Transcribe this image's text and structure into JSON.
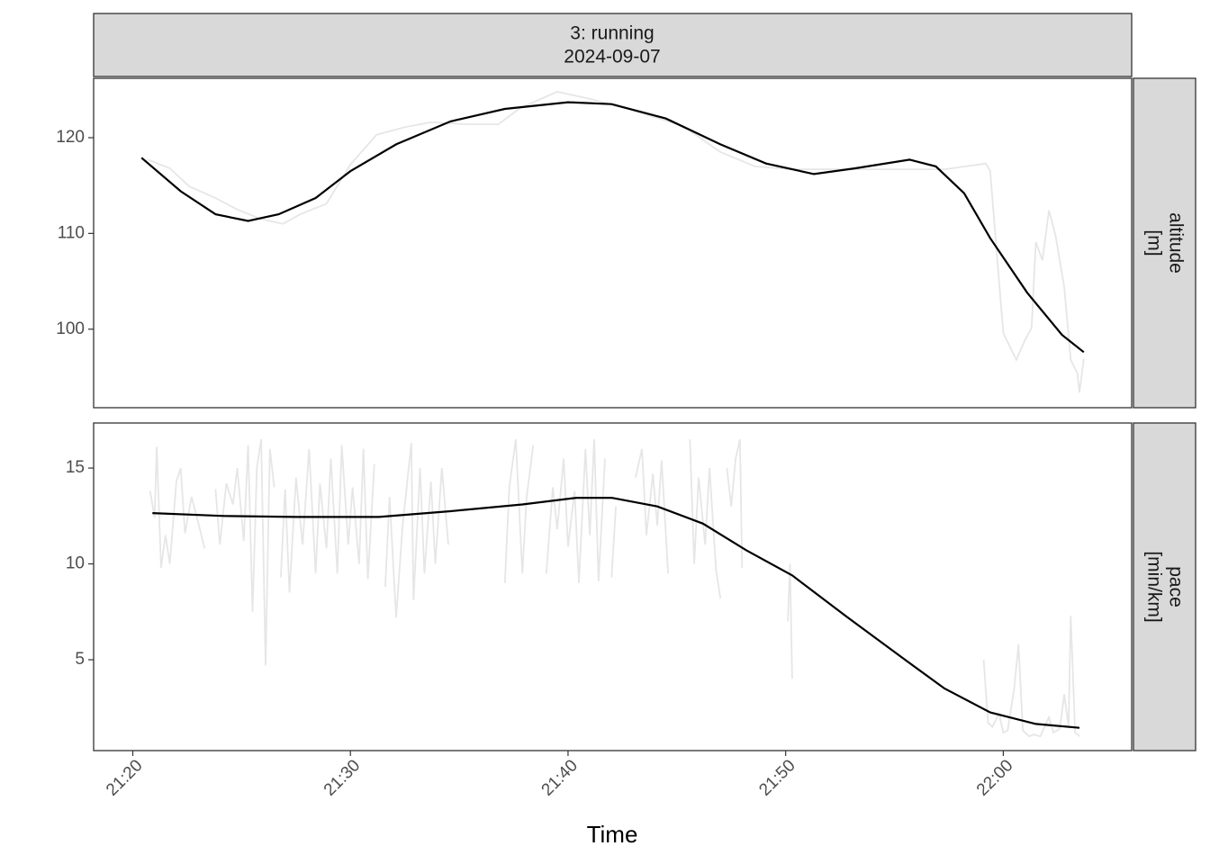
{
  "facet": {
    "title": "3: running",
    "subtitle": "2024-09-07"
  },
  "x_axis": {
    "label": "Time",
    "xlim": [
      1278.2,
      1325.9
    ],
    "xticks": [
      {
        "value": 1280,
        "label": "21:20"
      },
      {
        "value": 1290,
        "label": "21:30"
      },
      {
        "value": 1300,
        "label": "21:40"
      },
      {
        "value": 1310,
        "label": "21:50"
      },
      {
        "value": 1320,
        "label": "22:00"
      }
    ]
  },
  "chart_data": [
    {
      "type": "line",
      "strip_label": [
        "altitude",
        "[m]"
      ],
      "ylim": [
        91.8,
        126.2
      ],
      "yticks": [
        100,
        110,
        120
      ],
      "series": [
        {
          "color": "#e6e6e6",
          "x": [
            1280.7,
            1281.7,
            1282.6,
            1283.8,
            1284.8,
            1285.9,
            1286.9,
            1287.7,
            1288.9,
            1290.0,
            1291.2,
            1292.5,
            1293.7,
            1295.4,
            1296.8,
            1297.8,
            1299.5,
            1301.1,
            1302.9,
            1305.3,
            1307.0,
            1308.6,
            1310.3,
            1313.2,
            1315.2,
            1317.3,
            1319.2,
            1319.4,
            1319.7,
            1320.0,
            1320.3,
            1320.6,
            1321.0,
            1321.3,
            1321.5,
            1321.8,
            1322.1,
            1322.4,
            1322.8,
            1323.1,
            1323.4,
            1323.5,
            1323.7
          ],
          "values": [
            117.7,
            116.8,
            114.9,
            113.7,
            112.5,
            111.5,
            111.0,
            112.0,
            113.1,
            117.2,
            120.3,
            121.1,
            121.6,
            121.4,
            121.4,
            123.1,
            124.8,
            124.0,
            122.9,
            121.2,
            118.5,
            117.0,
            116.7,
            116.7,
            116.7,
            116.7,
            117.3,
            116.5,
            108.0,
            99.6,
            98.2,
            96.8,
            98.9,
            100.1,
            109.1,
            107.2,
            112.4,
            109.8,
            104.4,
            96.8,
            95.4,
            93.4,
            96.9
          ]
        },
        {
          "color": "#000000",
          "x": [
            1280.4,
            1282.2,
            1283.8,
            1285.3,
            1286.7,
            1288.4,
            1290.0,
            1292.1,
            1294.6,
            1297.1,
            1300.0,
            1302.0,
            1304.5,
            1307.0,
            1309.1,
            1311.3,
            1313.2,
            1315.7,
            1316.9,
            1318.2,
            1319.4,
            1321.1,
            1322.7,
            1323.7
          ],
          "values": [
            117.9,
            114.4,
            112.0,
            111.3,
            112.0,
            113.7,
            116.5,
            119.3,
            121.7,
            123.0,
            123.7,
            123.5,
            122.0,
            119.3,
            117.3,
            116.2,
            116.8,
            117.7,
            117.0,
            114.2,
            109.5,
            103.8,
            99.4,
            97.6
          ]
        }
      ]
    },
    {
      "type": "line",
      "strip_label": [
        "pace",
        "[min/km]"
      ],
      "ylim": [
        0.26,
        17.35
      ],
      "yticks": [
        5,
        10,
        15
      ],
      "series": [
        {
          "color": "#e6e6e6",
          "x": [
            1280.8,
            1281.0,
            1281.1,
            1281.3,
            1281.5,
            1281.7,
            1282.0,
            1282.2,
            1282.4,
            1282.7,
            1283.0,
            1283.3,
            1283.5,
            1283.8,
            1284.0,
            1284.3,
            1284.6,
            1284.8,
            1285.1,
            1285.3,
            1285.5,
            1285.7,
            1285.9,
            1286.1,
            1286.3,
            1286.5,
            1286.6,
            1286.8,
            1287.0,
            1287.2,
            1287.5,
            1287.8,
            1288.1,
            1288.4,
            1288.6,
            1288.9,
            1289.1,
            1289.4,
            1289.6,
            1289.9,
            1290.1,
            1290.4,
            1290.6,
            1290.8,
            1291.1,
            1291.3,
            1291.6,
            1291.8,
            1292.1,
            1292.4,
            1292.8,
            1292.9,
            1293.2,
            1293.4,
            1293.7,
            1293.9,
            1294.2,
            1294.5,
            1295.8,
            1297.1,
            1297.3,
            1297.6,
            1297.9,
            1298.1,
            1298.4,
            1298.7,
            1299.0,
            1299.3,
            1299.5,
            1299.8,
            1300.0,
            1300.3,
            1300.5,
            1300.8,
            1301.0,
            1301.2,
            1301.4,
            1301.7,
            1301.8,
            1302.0,
            1302.2,
            1302.6,
            1303.1,
            1303.4,
            1303.6,
            1303.9,
            1304.1,
            1304.3,
            1304.6,
            1305.1,
            1305.6,
            1305.8,
            1306.0,
            1306.3,
            1306.5,
            1306.8,
            1307.0,
            1307.1,
            1307.3,
            1307.5,
            1307.7,
            1307.9,
            1308.0,
            1309.0,
            1310.1,
            1310.2,
            1310.3,
            1315.0,
            1319.1,
            1319.3,
            1319.5,
            1319.8,
            1320.0,
            1320.2,
            1320.5,
            1320.7,
            1320.9,
            1321.2,
            1321.4,
            1321.7,
            1322.1,
            1322.3,
            1322.6,
            1322.8,
            1323.0,
            1323.1,
            1323.3,
            1323.5
          ],
          "values": [
            13.8,
            12.4,
            16.1,
            9.8,
            11.5,
            10.0,
            14.3,
            15.0,
            11.6,
            13.5,
            12.2,
            10.8,
            null,
            13.9,
            11.0,
            14.2,
            13.1,
            15.0,
            11.2,
            16.2,
            7.5,
            15.0,
            16.5,
            4.7,
            16.0,
            14.0,
            null,
            9.3,
            13.9,
            8.5,
            14.5,
            11.0,
            16.0,
            9.5,
            14.2,
            10.8,
            15.5,
            9.5,
            16.2,
            11.0,
            14.0,
            10.0,
            16.0,
            9.2,
            15.2,
            null,
            8.8,
            13.5,
            7.2,
            12.0,
            16.3,
            8.1,
            15.0,
            9.5,
            14.3,
            10.0,
            15.0,
            11.0,
            null,
            9.0,
            14.0,
            16.5,
            9.5,
            13.5,
            16.2,
            null,
            9.5,
            14.0,
            11.8,
            15.5,
            10.9,
            13.8,
            9.0,
            16.0,
            11.5,
            16.5,
            9.1,
            15.5,
            null,
            9.3,
            13.0,
            null,
            14.5,
            16.0,
            11.5,
            14.7,
            12.0,
            15.4,
            9.5,
            null,
            16.5,
            10.0,
            14.5,
            11.0,
            15.0,
            9.7,
            8.2,
            null,
            15.0,
            13.0,
            15.5,
            16.5,
            9.8,
            null,
            7.0,
            10.0,
            4.0,
            null,
            5.0,
            1.7,
            1.5,
            2.2,
            1.2,
            1.3,
            3.5,
            5.8,
            1.3,
            1.0,
            1.1,
            1.0,
            2.0,
            1.2,
            1.4,
            3.2,
            1.5,
            7.3,
            1.2,
            1.0
          ]
        },
        {
          "color": "#000000",
          "x": [
            1280.9,
            1284.2,
            1287.5,
            1291.3,
            1294.6,
            1297.9,
            1300.4,
            1302.0,
            1304.1,
            1306.2,
            1308.2,
            1310.3,
            1312.8,
            1315.3,
            1317.3,
            1319.4,
            1321.5,
            1323.5
          ],
          "values": [
            12.65,
            12.5,
            12.45,
            12.45,
            12.75,
            13.1,
            13.45,
            13.45,
            13.0,
            12.1,
            10.7,
            9.4,
            7.25,
            5.15,
            3.5,
            2.25,
            1.65,
            1.45
          ]
        }
      ]
    }
  ]
}
